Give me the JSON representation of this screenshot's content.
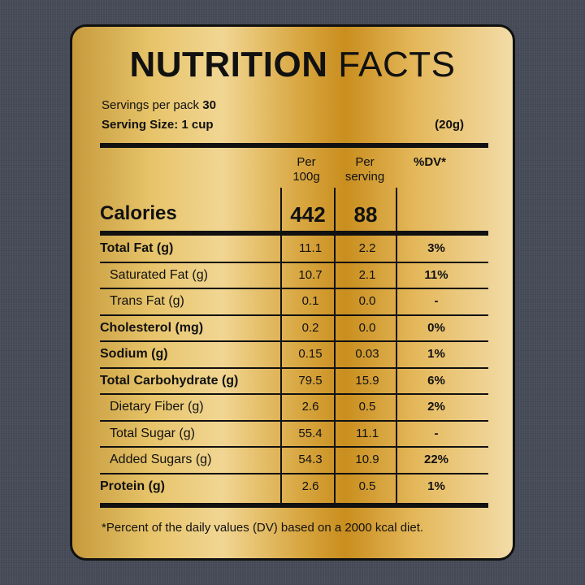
{
  "title": {
    "bold": "NUTRITION",
    "light": "FACTS"
  },
  "servings": {
    "label": "Servings per pack",
    "value": "30"
  },
  "serving_size": {
    "label": "Serving Size: 1 cup",
    "grams": "(20g)"
  },
  "columns": {
    "per100_line1": "Per",
    "per100_line2": "100g",
    "perserving_line1": "Per",
    "perserving_line2": "serving",
    "dv": "%DV*"
  },
  "calories": {
    "label": "Calories",
    "per100": "442",
    "perserving": "88"
  },
  "rows": [
    {
      "name": "Total Fat (g)",
      "per100": "11.1",
      "perserving": "2.2",
      "dv": "3%"
    },
    {
      "name": "Saturated Fat (g)",
      "per100": "10.7",
      "perserving": "2.1",
      "dv": "11%"
    },
    {
      "name": "Trans Fat (g)",
      "per100": "0.1",
      "perserving": "0.0",
      "dv": "-"
    },
    {
      "name": "Cholesterol (mg)",
      "per100": "0.2",
      "perserving": "0.0",
      "dv": "0%"
    },
    {
      "name": "Sodium (g)",
      "per100": "0.15",
      "perserving": "0.03",
      "dv": "1%"
    },
    {
      "name": "Total Carbohydrate (g)",
      "per100": "79.5",
      "perserving": "15.9",
      "dv": "6%"
    },
    {
      "name": "Dietary Fiber (g)",
      "per100": "2.6",
      "perserving": "0.5",
      "dv": "2%"
    },
    {
      "name": "Total Sugar (g)",
      "per100": "55.4",
      "perserving": "11.1",
      "dv": "-"
    },
    {
      "name": "Added Sugars (g)",
      "per100": "54.3",
      "perserving": "10.9",
      "dv": "22%"
    },
    {
      "name": "Protein (g)",
      "per100": "2.6",
      "perserving": "0.5",
      "dv": "1%"
    }
  ],
  "footnote": "*Percent of the daily values (DV) based on a 2000 kcal diet."
}
